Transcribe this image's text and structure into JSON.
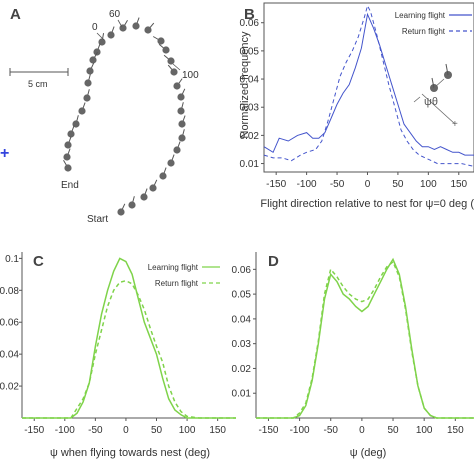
{
  "colors": {
    "blue": "#4455cc",
    "green": "#7fd34a",
    "gray_dot": "#666666",
    "axis": "#555555",
    "text": "#333333"
  },
  "panel_a": {
    "label": "A",
    "scale_label": "5 cm",
    "annotations": {
      "t0": "0",
      "t60": "60",
      "t100": "100",
      "end": "End",
      "start": "Start"
    }
  },
  "chart_data": [
    {
      "panel": "B",
      "type": "line",
      "xlabel": "Flight direction relative to nest for ψ=0 deg (",
      "ylabel": "Normalized frequency",
      "xlim": [
        -170,
        175
      ],
      "ylim": [
        0.007,
        0.067
      ],
      "xticks": [
        "-150",
        "-100",
        "-50",
        "0",
        "50",
        "100",
        "150"
      ],
      "yticks": [
        "0.01",
        "0.02",
        "0.03",
        "0.04",
        "0.05",
        "0.06"
      ],
      "legend": [
        "Learning flight",
        "Return flight"
      ],
      "inset_label": "ψθ",
      "series": [
        {
          "name": "Learning flight",
          "style": "solid",
          "x": [
            -170,
            -155,
            -145,
            -130,
            -115,
            -100,
            -90,
            -80,
            -70,
            -60,
            -50,
            -40,
            -30,
            -20,
            -10,
            0,
            10,
            20,
            30,
            40,
            50,
            60,
            70,
            80,
            90,
            100,
            110,
            120,
            130,
            140,
            150,
            160,
            175
          ],
          "y": [
            0.016,
            0.014,
            0.019,
            0.018,
            0.02,
            0.021,
            0.019,
            0.019,
            0.021,
            0.026,
            0.031,
            0.035,
            0.038,
            0.044,
            0.051,
            0.063,
            0.058,
            0.052,
            0.045,
            0.038,
            0.031,
            0.024,
            0.021,
            0.018,
            0.016,
            0.016,
            0.015,
            0.016,
            0.015,
            0.014,
            0.014,
            0.013,
            0.013
          ]
        },
        {
          "name": "Return flight",
          "style": "dashed",
          "x": [
            -170,
            -155,
            -140,
            -125,
            -110,
            -100,
            -85,
            -75,
            -65,
            -55,
            -45,
            -35,
            -25,
            -15,
            -5,
            0,
            5,
            15,
            25,
            35,
            45,
            55,
            65,
            75,
            85,
            95,
            105,
            115,
            125,
            140,
            155,
            175
          ],
          "y": [
            0.013,
            0.012,
            0.012,
            0.011,
            0.013,
            0.014,
            0.015,
            0.018,
            0.025,
            0.033,
            0.041,
            0.046,
            0.05,
            0.055,
            0.062,
            0.066,
            0.064,
            0.056,
            0.047,
            0.038,
            0.03,
            0.022,
            0.018,
            0.015,
            0.013,
            0.012,
            0.011,
            0.01,
            0.01,
            0.01,
            0.01,
            0.009
          ]
        }
      ]
    },
    {
      "panel": "C",
      "type": "line",
      "xlabel": "ψ when flying towards nest (deg)",
      "ylabel": "",
      "xlim": [
        -170,
        180
      ],
      "ylim": [
        0,
        0.104
      ],
      "xticks": [
        "-150",
        "-100",
        "-50",
        "0",
        "50",
        "100",
        "150"
      ],
      "yticks": [
        "0.1",
        "0.08",
        "0.06",
        "0.04",
        "0.02"
      ],
      "yticks_values": [
        0.1,
        0.08,
        0.06,
        0.04,
        0.02
      ],
      "legend": [
        "Learning flight",
        "Return flight"
      ],
      "series": [
        {
          "name": "Learning flight",
          "style": "solid",
          "x": [
            -170,
            -140,
            -110,
            -90,
            -80,
            -70,
            -60,
            -50,
            -40,
            -30,
            -20,
            -10,
            0,
            10,
            20,
            30,
            40,
            50,
            60,
            70,
            80,
            90,
            100,
            120,
            150,
            180
          ],
          "y": [
            0.0,
            0.0,
            0.0,
            0.0,
            0.003,
            0.01,
            0.022,
            0.045,
            0.065,
            0.08,
            0.092,
            0.1,
            0.098,
            0.09,
            0.075,
            0.06,
            0.05,
            0.04,
            0.025,
            0.012,
            0.005,
            0.002,
            0.0,
            0.0,
            0.0,
            0.0
          ]
        },
        {
          "name": "Return flight",
          "style": "dashed",
          "x": [
            -170,
            -140,
            -110,
            -90,
            -80,
            -70,
            -60,
            -50,
            -40,
            -30,
            -20,
            -10,
            0,
            10,
            20,
            30,
            40,
            50,
            60,
            70,
            80,
            90,
            100,
            120,
            150,
            180
          ],
          "y": [
            0.0,
            0.0,
            0.0,
            0.0,
            0.006,
            0.012,
            0.022,
            0.04,
            0.055,
            0.07,
            0.08,
            0.085,
            0.086,
            0.084,
            0.077,
            0.068,
            0.056,
            0.045,
            0.035,
            0.02,
            0.01,
            0.004,
            0.001,
            0.0,
            0.0,
            0.0
          ]
        }
      ]
    },
    {
      "panel": "D",
      "type": "line",
      "xlabel": "ψ (deg)",
      "ylabel": "",
      "xlim": [
        -170,
        180
      ],
      "ylim": [
        0,
        0.067
      ],
      "xticks": [
        "-150",
        "-100",
        "-50",
        "0",
        "50",
        "100",
        "150"
      ],
      "yticks": [
        "0.01",
        "0.02",
        "0.03",
        "0.04",
        "0.05",
        "0.06"
      ],
      "series": [
        {
          "name": "Learning flight",
          "style": "solid",
          "x": [
            -170,
            -140,
            -120,
            -110,
            -100,
            -90,
            -80,
            -70,
            -60,
            -50,
            -40,
            -30,
            -20,
            -10,
            0,
            10,
            20,
            30,
            40,
            50,
            60,
            70,
            80,
            90,
            100,
            110,
            120,
            140,
            160,
            180
          ],
          "y": [
            0.0,
            0.0,
            0.0,
            0.0,
            0.001,
            0.005,
            0.015,
            0.03,
            0.048,
            0.058,
            0.055,
            0.05,
            0.048,
            0.045,
            0.043,
            0.045,
            0.05,
            0.055,
            0.06,
            0.064,
            0.058,
            0.045,
            0.028,
            0.013,
            0.004,
            0.001,
            0.0,
            0.0,
            0.0,
            0.0
          ]
        },
        {
          "name": "Return flight",
          "style": "dashed",
          "x": [
            -170,
            -140,
            -120,
            -110,
            -100,
            -90,
            -80,
            -70,
            -60,
            -50,
            -40,
            -30,
            -20,
            -10,
            0,
            10,
            20,
            30,
            40,
            50,
            60,
            70,
            80,
            90,
            100,
            110,
            120,
            140,
            160,
            180
          ],
          "y": [
            0.0,
            0.0,
            0.0,
            0.0,
            0.002,
            0.006,
            0.016,
            0.031,
            0.05,
            0.06,
            0.057,
            0.053,
            0.05,
            0.048,
            0.047,
            0.048,
            0.052,
            0.057,
            0.061,
            0.063,
            0.057,
            0.044,
            0.027,
            0.013,
            0.004,
            0.001,
            0.0,
            0.0,
            0.0,
            0.0
          ]
        }
      ]
    }
  ]
}
